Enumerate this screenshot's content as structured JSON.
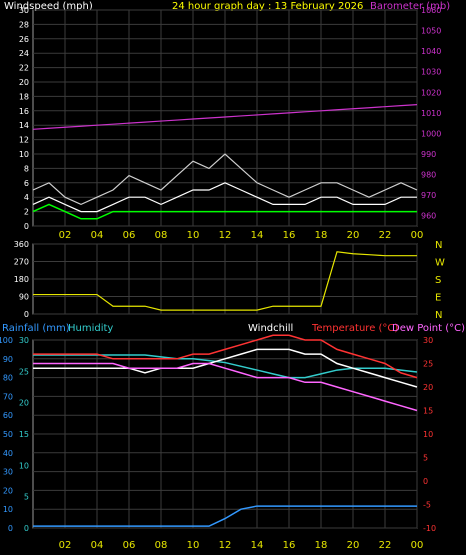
{
  "colors": {
    "background": "#000000",
    "grid": "#3b3b3b",
    "axis": "#9a9a9a",
    "windspeed": "#ffffff",
    "wind_gust": "#cfcfcf",
    "wind_avg": "#00ff00",
    "barometer": "#cc33cc",
    "direction": "#e6e600",
    "rainfall": "#3399ff",
    "humidity": "#33cccc",
    "windchill": "#ffffff",
    "temperature": "#ff3333",
    "dewpoint": "#ff66ff",
    "time_labels": "#e6e600",
    "compass": "#e6e600",
    "title": "#ffff00"
  },
  "header": {
    "windspeed_label": "Windspeed (mph)",
    "title": "24 hour graph day : 13 February 2026",
    "barometer_label": "Barometer (mb)"
  },
  "legend_bottom": {
    "rainfall": "Rainfall (mm)",
    "humidity": "Humidity",
    "windchill": "Windchill",
    "temperature": "Temperature (°C)",
    "dewpoint": "Dew Point (°C)"
  },
  "time_labels": [
    "02",
    "04",
    "06",
    "08",
    "10",
    "12",
    "14",
    "16",
    "18",
    "20",
    "22",
    "00"
  ],
  "compass": [
    "N",
    "W",
    "S",
    "E",
    "N"
  ],
  "chart_data": [
    {
      "type": "line",
      "name": "wind-and-barometer",
      "x_hours": [
        0,
        1,
        2,
        3,
        4,
        5,
        6,
        7,
        8,
        9,
        10,
        11,
        12,
        13,
        14,
        15,
        16,
        17,
        18,
        19,
        20,
        21,
        22,
        23,
        24
      ],
      "ylim": [
        0,
        30
      ],
      "yticks": [
        0,
        2,
        4,
        6,
        8,
        10,
        12,
        14,
        16,
        18,
        20,
        22,
        24,
        26,
        28,
        30
      ],
      "y2lim": [
        955,
        1060
      ],
      "y2ticks": [
        960,
        970,
        980,
        990,
        1000,
        1010,
        1020,
        1030,
        1040,
        1050,
        1060
      ],
      "series": [
        {
          "key": "gust",
          "values": [
            5,
            6,
            4,
            3,
            4,
            5,
            7,
            6,
            5,
            7,
            9,
            8,
            10,
            8,
            6,
            5,
            4,
            5,
            6,
            6,
            5,
            4,
            5,
            6,
            5
          ]
        },
        {
          "key": "speed",
          "values": [
            3,
            4,
            3,
            2,
            2,
            3,
            4,
            4,
            3,
            4,
            5,
            5,
            6,
            5,
            4,
            3,
            3,
            3,
            4,
            4,
            3,
            3,
            3,
            4,
            4
          ]
        },
        {
          "key": "average",
          "values": [
            2,
            3,
            2,
            1,
            1,
            2,
            2,
            2,
            2,
            2,
            2,
            2,
            2,
            2,
            2,
            2,
            2,
            2,
            2,
            2,
            2,
            2,
            2,
            2,
            2
          ]
        },
        {
          "key": "barometer",
          "values": [
            1002,
            1002.5,
            1003,
            1003.5,
            1004,
            1004.5,
            1005,
            1005.5,
            1006,
            1006.5,
            1007,
            1007.5,
            1008,
            1008.5,
            1009,
            1009.5,
            1010,
            1010.5,
            1011,
            1011.5,
            1012,
            1012.5,
            1013,
            1013.5,
            1014
          ]
        }
      ]
    },
    {
      "type": "line",
      "name": "wind-direction",
      "ylim": [
        0,
        360
      ],
      "yticks": [
        0,
        90,
        180,
        270,
        360
      ],
      "x_hours": [
        0,
        1,
        2,
        3,
        4,
        5,
        6,
        7,
        8,
        9,
        10,
        11,
        12,
        13,
        14,
        15,
        16,
        17,
        18,
        19,
        20,
        21,
        22,
        23,
        24
      ],
      "values": [
        100,
        100,
        100,
        100,
        100,
        40,
        40,
        40,
        20,
        20,
        20,
        20,
        20,
        20,
        20,
        40,
        40,
        40,
        40,
        320,
        310,
        305,
        300,
        300,
        300
      ]
    },
    {
      "type": "line",
      "name": "temperature-humidity-rain",
      "x_hours": [
        0,
        1,
        2,
        3,
        4,
        5,
        6,
        7,
        8,
        9,
        10,
        11,
        12,
        13,
        14,
        15,
        16,
        17,
        18,
        19,
        20,
        21,
        22,
        23,
        24
      ],
      "ylim": [
        0,
        100
      ],
      "yticks": [
        0,
        10,
        20,
        30,
        40,
        50,
        60,
        70,
        80,
        90,
        100
      ],
      "rain_ticks": [
        0,
        5,
        10,
        15,
        20,
        25,
        30
      ],
      "temp_ticks": [
        30,
        25,
        20,
        15,
        10,
        5,
        0,
        -5,
        -10
      ],
      "series": [
        {
          "key": "humidity",
          "values": [
            92,
            92,
            92,
            92,
            92,
            92,
            92,
            92,
            91,
            90,
            90,
            89,
            88,
            86,
            84,
            82,
            80,
            80,
            82,
            84,
            85,
            85,
            85,
            84,
            83
          ]
        },
        {
          "key": "temperature",
          "values": [
            27,
            27,
            27,
            27,
            27,
            26,
            26,
            26,
            26,
            26,
            27,
            27,
            28,
            29,
            30,
            31,
            31,
            30,
            30,
            28,
            27,
            26,
            25,
            23,
            22
          ]
        },
        {
          "key": "windchill",
          "values": [
            24,
            24,
            24,
            24,
            24,
            24,
            24,
            23,
            24,
            24,
            24,
            25,
            26,
            27,
            28,
            28,
            28,
            27,
            27,
            25,
            24,
            23,
            22,
            21,
            20
          ]
        },
        {
          "key": "dewpoint",
          "values": [
            25,
            25,
            25,
            25,
            25,
            25,
            24,
            24,
            24,
            24,
            25,
            25,
            24,
            23,
            22,
            22,
            22,
            21,
            21,
            20,
            19,
            18,
            17,
            16,
            15
          ]
        },
        {
          "key": "rainfall",
          "values": [
            0.3,
            0.3,
            0.3,
            0.3,
            0.3,
            0.3,
            0.3,
            0.3,
            0.3,
            0.3,
            0.3,
            0.3,
            1.5,
            3.0,
            3.5,
            3.5,
            3.5,
            3.5,
            3.5,
            3.5,
            3.5,
            3.5,
            3.5,
            3.5,
            3.5
          ]
        }
      ]
    }
  ]
}
